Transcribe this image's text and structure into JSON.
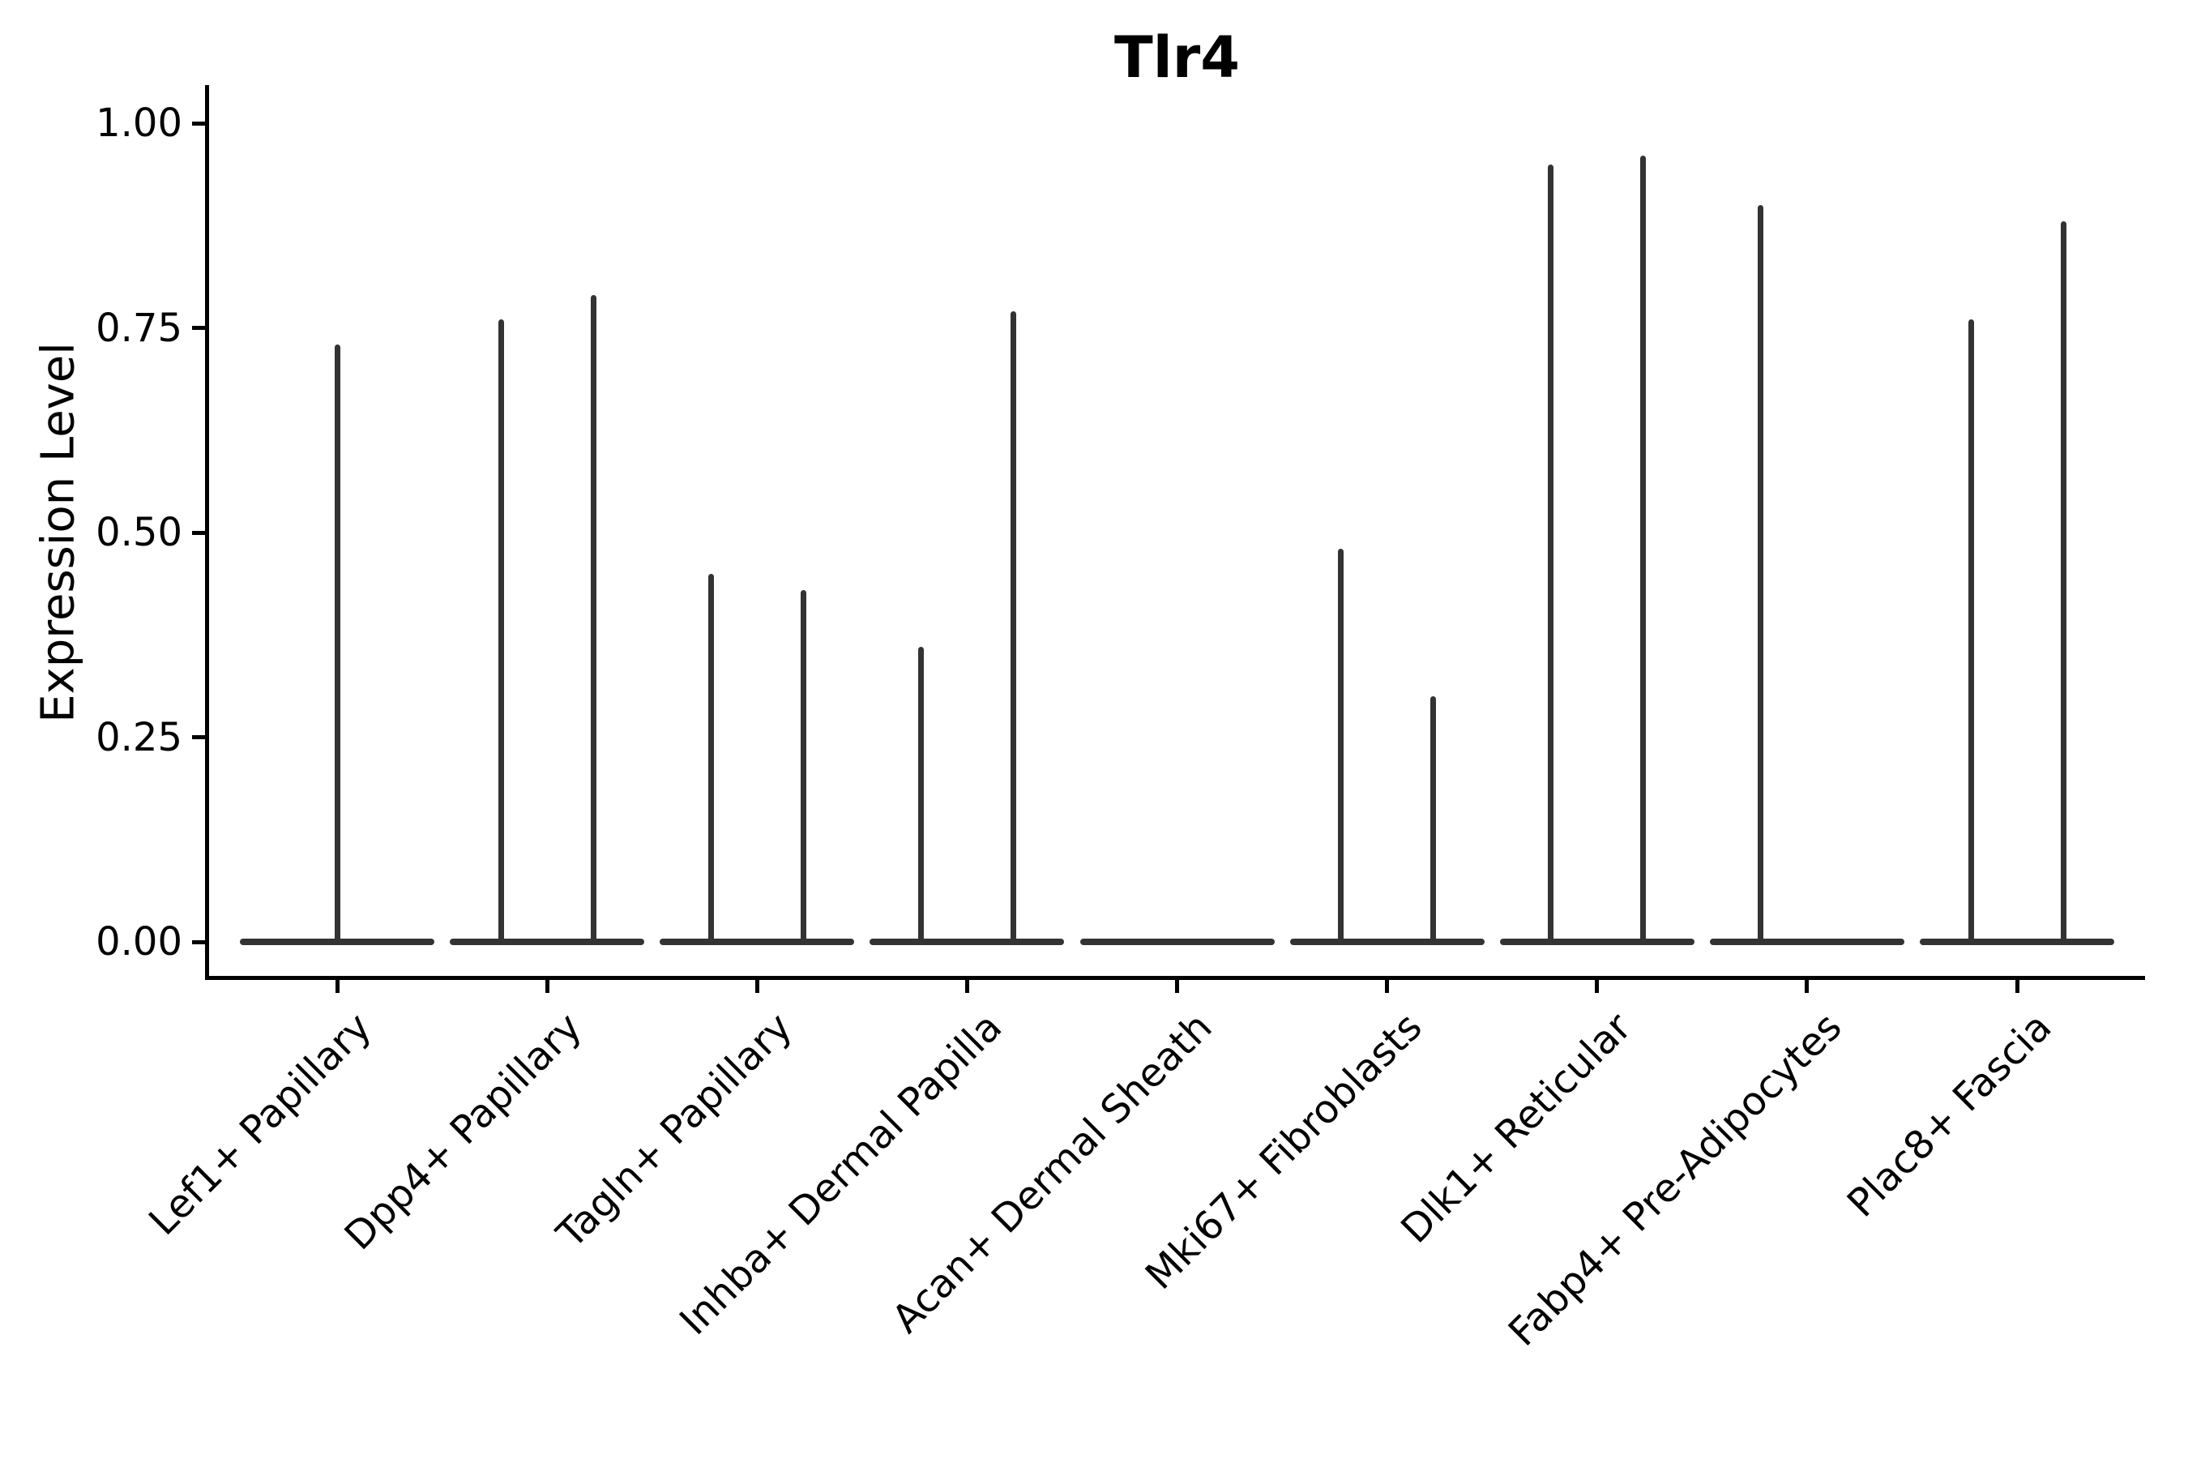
{
  "chart_data": {
    "type": "violin",
    "title": "Tlr4",
    "ylabel": "Expression Level",
    "xlabel": "",
    "ylim": [
      0,
      1
    ],
    "grid": false,
    "legend": "none",
    "y_ticks": [
      {
        "value": 0.0,
        "label": "0.00"
      },
      {
        "value": 0.25,
        "label": "0.25"
      },
      {
        "value": 0.5,
        "label": "0.50"
      },
      {
        "value": 0.75,
        "label": "0.75"
      },
      {
        "value": 1.0,
        "label": "1.00"
      }
    ],
    "description": "Violin plot of Tlr4 expression per fibroblast cluster; each violin is a wide flat bar at expression 0 with thin vertical tails (spikes) reaching the listed maximum expression values.",
    "categories": [
      {
        "label": "Lef1+ Papillary",
        "baseline": 0,
        "spikes": [
          {
            "pos": "center",
            "value": 0.73
          }
        ]
      },
      {
        "label": "Dpp4+ Papillary",
        "baseline": 0,
        "spikes": [
          {
            "pos": "left",
            "value": 0.76
          },
          {
            "pos": "right",
            "value": 0.79
          }
        ]
      },
      {
        "label": "Tagln+ Papillary",
        "baseline": 0,
        "spikes": [
          {
            "pos": "left",
            "value": 0.45
          },
          {
            "pos": "right",
            "value": 0.43
          }
        ]
      },
      {
        "label": "Inhba+ Dermal Papilla",
        "baseline": 0,
        "spikes": [
          {
            "pos": "left",
            "value": 0.36
          },
          {
            "pos": "right",
            "value": 0.77
          }
        ]
      },
      {
        "label": "Acan+ Dermal Sheath",
        "baseline": 0,
        "spikes": []
      },
      {
        "label": "Mki67+ Fibroblasts",
        "baseline": 0,
        "spikes": [
          {
            "pos": "left",
            "value": 0.48
          },
          {
            "pos": "right",
            "value": 0.3
          }
        ]
      },
      {
        "label": "Dlk1+ Reticular",
        "baseline": 0,
        "spikes": [
          {
            "pos": "left",
            "value": 0.95
          },
          {
            "pos": "right",
            "value": 0.96
          }
        ]
      },
      {
        "label": "Fabp4+ Pre-Adipocytes",
        "baseline": 0,
        "spikes": [
          {
            "pos": "left",
            "value": 0.9
          }
        ]
      },
      {
        "label": "Plac8+ Fascia",
        "baseline": 0,
        "spikes": [
          {
            "pos": "left",
            "value": 0.76
          },
          {
            "pos": "right",
            "value": 0.88
          }
        ]
      }
    ],
    "colors": {
      "violin_stroke": "#333333",
      "axis": "#000000",
      "text": "#000000",
      "background": "#ffffff"
    }
  }
}
